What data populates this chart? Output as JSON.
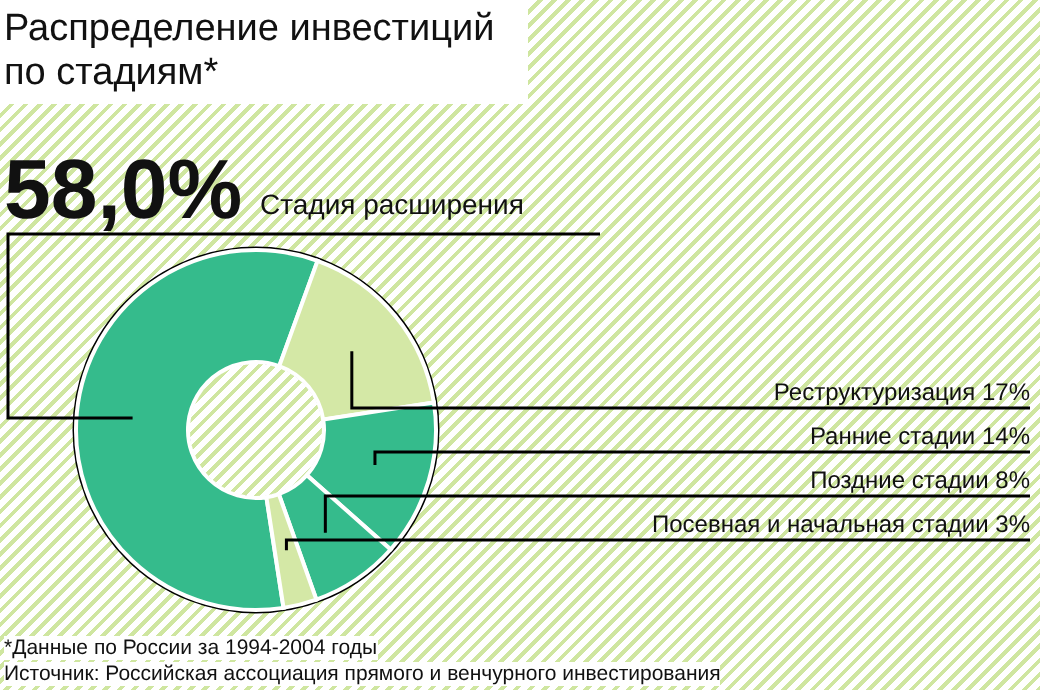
{
  "chart_data": {
    "type": "donut",
    "title": "Распределение инвестиций по стадиям*",
    "categories": [
      "Стадия расширения",
      "Реструктуризация",
      "Ранние стадии",
      "Поздние стадии",
      "Посевная и начальная стадии"
    ],
    "values": [
      58,
      17,
      14,
      8,
      3
    ],
    "value_labels": [
      "58,0%",
      "17%",
      "14%",
      "8%",
      "3%"
    ],
    "colors": [
      "#35bb8c",
      "#d4e8a6",
      "#35bb8c",
      "#35bb8c",
      "#d4e8a6"
    ],
    "annotations": [
      "*Данные по России за 1994-2004 годы",
      "Источник: Российская ассоциация прямого и венчурного инвестирования"
    ]
  }
}
